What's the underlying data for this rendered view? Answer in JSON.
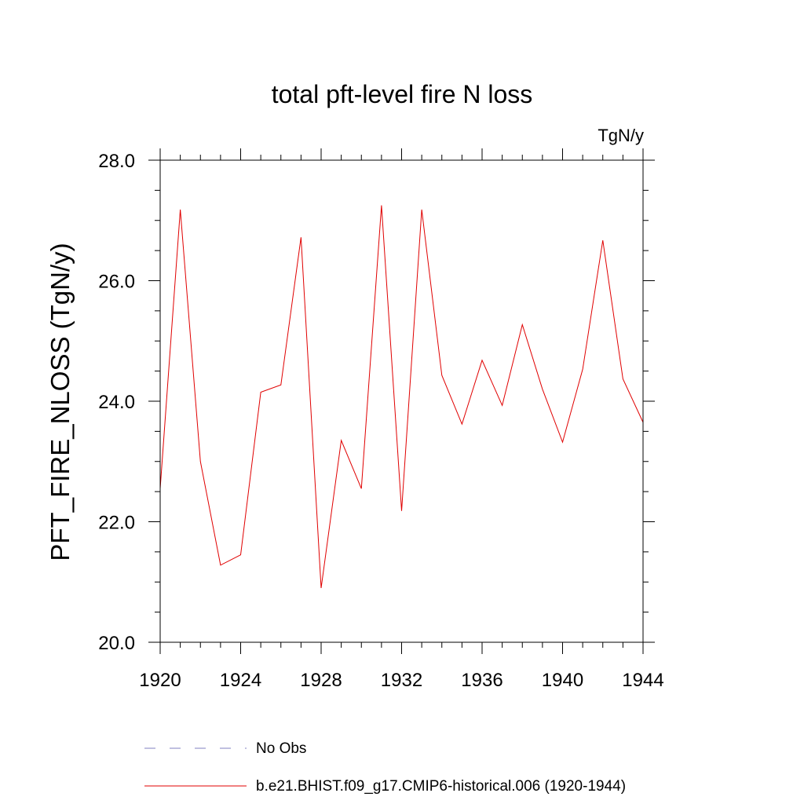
{
  "chart_data": {
    "type": "line",
    "title": "total pft-level fire N loss",
    "units_label": "TgN/y",
    "ylabel": "PFT_FIRE_NLOSS  (TgN/y)",
    "xlabel": "",
    "xlim": [
      1920,
      1944
    ],
    "ylim": [
      20.0,
      28.0
    ],
    "x_ticks": [
      1920,
      1924,
      1928,
      1932,
      1936,
      1940,
      1944
    ],
    "x_tick_labels": [
      "1920",
      "1924",
      "1928",
      "1932",
      "1936",
      "1940",
      "1944"
    ],
    "y_ticks": [
      20.0,
      22.0,
      24.0,
      26.0,
      28.0
    ],
    "y_tick_labels": [
      "20.0",
      "22.0",
      "24.0",
      "26.0",
      "28.0"
    ],
    "grid": false,
    "series": [
      {
        "name": "No Obs",
        "color": "#8080c0",
        "dash": "dashed",
        "x": [],
        "values": []
      },
      {
        "name": "b.e21.BHIST.f09_g17.CMIP6-historical.006 (1920-1944)",
        "color": "#e00000",
        "dash": "solid",
        "x": [
          1920,
          1921,
          1922,
          1923,
          1924,
          1925,
          1926,
          1927,
          1928,
          1929,
          1930,
          1931,
          1932,
          1933,
          1934,
          1935,
          1936,
          1937,
          1938,
          1939,
          1940,
          1941,
          1942,
          1943,
          1944
        ],
        "values": [
          22.55,
          27.18,
          23.0,
          21.28,
          21.45,
          24.15,
          24.27,
          26.72,
          20.9,
          23.35,
          22.55,
          27.25,
          22.18,
          27.18,
          24.43,
          23.62,
          24.68,
          23.93,
          25.27,
          24.2,
          23.32,
          24.53,
          26.67,
          24.37,
          23.65
        ]
      }
    ],
    "legend": "bottom-left"
  }
}
